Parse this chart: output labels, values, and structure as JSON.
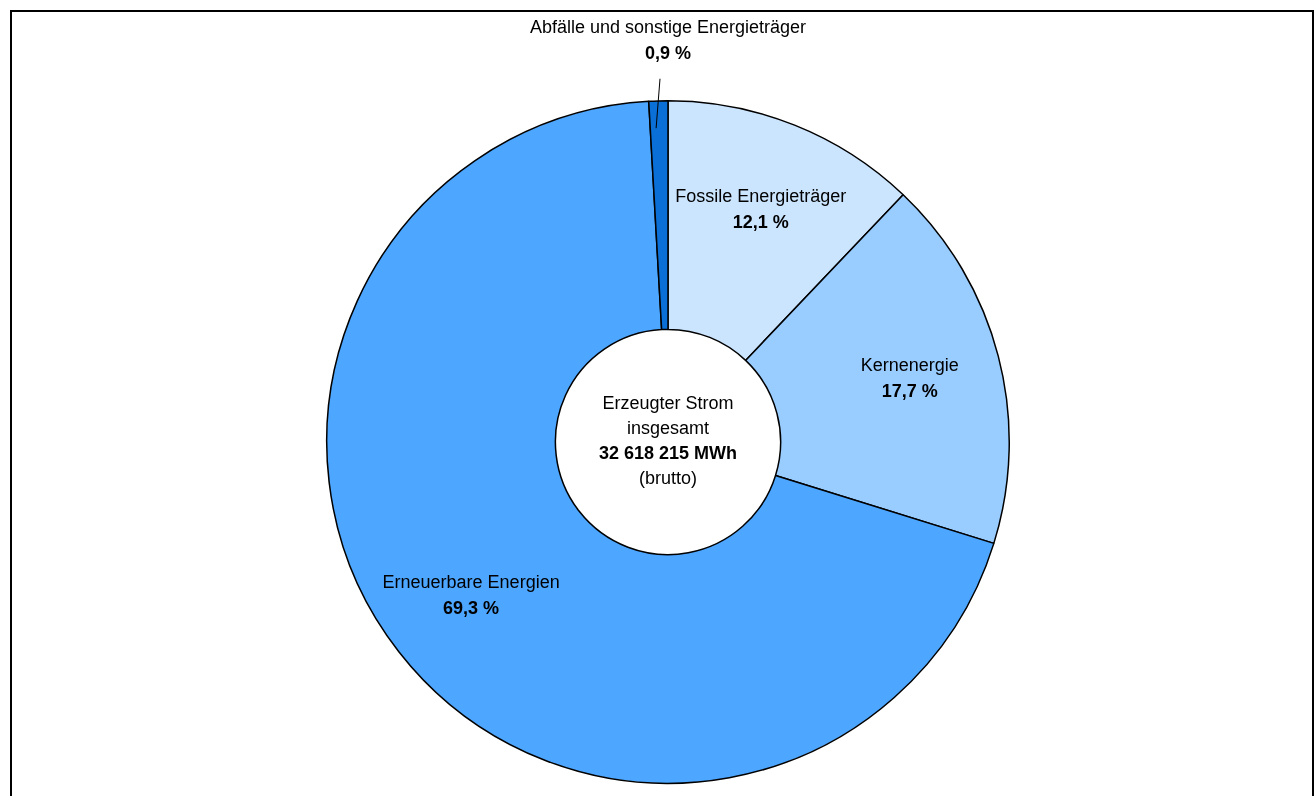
{
  "chart_data": {
    "type": "donut",
    "categories": [
      "Fossile Energieträger",
      "Kernenergie",
      "Erneuerbare Energien",
      "Abfälle und sonstige Energieträger"
    ],
    "values": [
      12.1,
      17.7,
      69.3,
      0.9
    ],
    "colors": [
      "#cce5ff",
      "#99ccff",
      "#4da6ff",
      "#0a6fd6"
    ],
    "value_labels": [
      "12,1 %",
      "17,7 %",
      "69,3 %",
      "0,9 %"
    ],
    "annotations": [
      "Erzeugter Strom",
      "insgesamt",
      "32 618 215 MWh",
      "(brutto)"
    ],
    "legend": false
  }
}
